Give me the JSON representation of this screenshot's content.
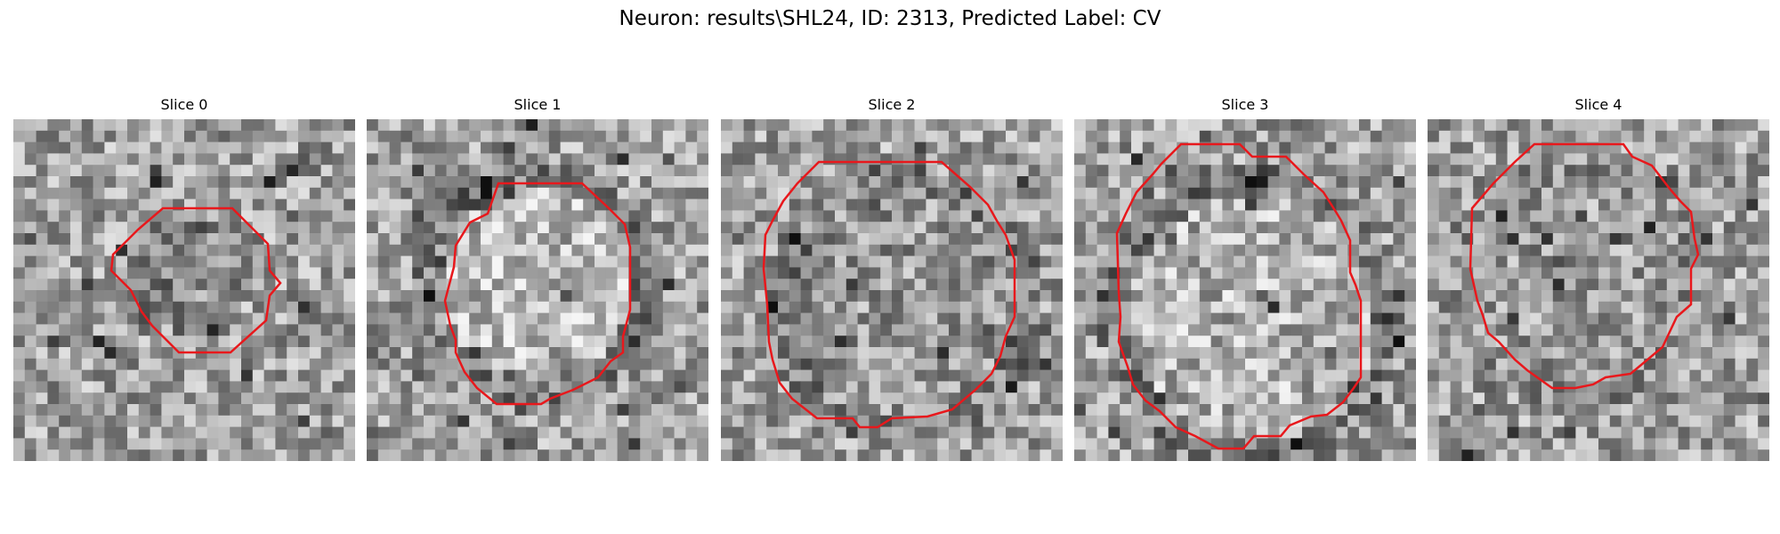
{
  "figure": {
    "title": "Neuron: results\\SHL24, ID: 2313, Predicted Label: CV"
  },
  "slices": [
    {
      "title": "Slice 0"
    },
    {
      "title": "Slice 1"
    },
    {
      "title": "Slice 2"
    },
    {
      "title": "Slice 3"
    },
    {
      "title": "Slice 4"
    }
  ],
  "colors": {
    "contour": "#e8181c",
    "background": "#ffffff"
  }
}
